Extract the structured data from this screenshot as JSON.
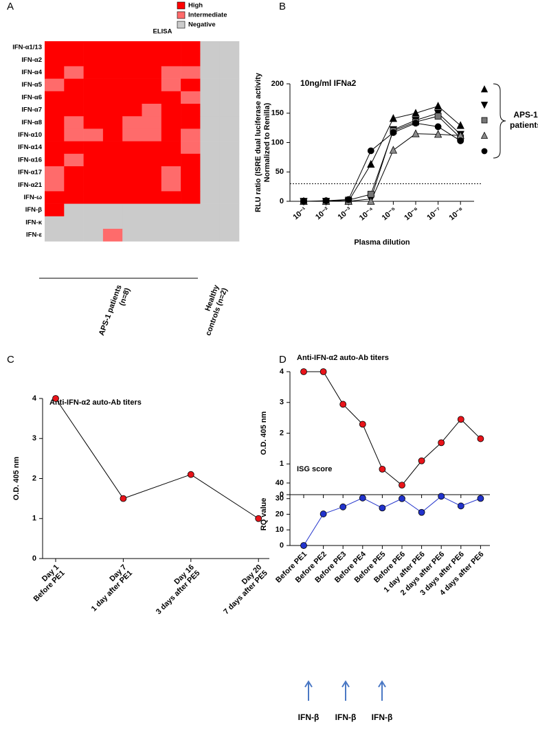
{
  "chart_data": [
    {
      "type": "heatmap",
      "panel": "A",
      "title": "ELISA",
      "rows": [
        "IFN-α1/13",
        "IFN-α2",
        "IFN-α4",
        "IFN-α5",
        "IFN-α6",
        "IFN-α7",
        "IFN-α8",
        "IFN-α10",
        "IFN-α14",
        "IFN-α16",
        "IFN-α17",
        "IFN-α21",
        "IFN-ω",
        "IFN-β",
        "IFN-κ",
        "IFN-ε"
      ],
      "levels": [
        {
          "name": "High",
          "color": "#ff0000"
        },
        {
          "name": "Intermediate",
          "color": "#ff6b6b"
        },
        {
          "name": "Negative",
          "color": "#cbcbcb"
        }
      ],
      "groups": [
        {
          "label": [
            "APS-1 patients",
            "(n=8)"
          ],
          "columns": 8
        },
        {
          "label": [
            "Healthy",
            "controls (n=2)"
          ],
          "columns": 2
        }
      ],
      "cells": [
        [
          0,
          0,
          0,
          0,
          0,
          0,
          0,
          0,
          2,
          2
        ],
        [
          0,
          0,
          0,
          0,
          0,
          0,
          0,
          0,
          2,
          2
        ],
        [
          0,
          1,
          0,
          0,
          0,
          0,
          1,
          1,
          2,
          2
        ],
        [
          1,
          0,
          0,
          0,
          0,
          0,
          1,
          0,
          2,
          2
        ],
        [
          0,
          0,
          0,
          0,
          0,
          0,
          0,
          1,
          2,
          2
        ],
        [
          0,
          0,
          0,
          0,
          0,
          1,
          0,
          0,
          2,
          2
        ],
        [
          0,
          1,
          0,
          0,
          1,
          1,
          0,
          0,
          2,
          2
        ],
        [
          0,
          1,
          1,
          0,
          1,
          1,
          0,
          1,
          2,
          2
        ],
        [
          0,
          0,
          0,
          0,
          0,
          0,
          0,
          1,
          2,
          2
        ],
        [
          0,
          1,
          0,
          0,
          0,
          0,
          0,
          0,
          2,
          2
        ],
        [
          1,
          0,
          0,
          0,
          0,
          0,
          1,
          0,
          2,
          2
        ],
        [
          1,
          0,
          0,
          0,
          0,
          0,
          1,
          0,
          2,
          2
        ],
        [
          0,
          0,
          0,
          0,
          0,
          0,
          0,
          0,
          2,
          2
        ],
        [
          0,
          2,
          2,
          2,
          2,
          2,
          2,
          2,
          2,
          2
        ],
        [
          2,
          2,
          2,
          2,
          2,
          2,
          2,
          2,
          2,
          2
        ],
        [
          2,
          2,
          2,
          1,
          2,
          2,
          2,
          2,
          2,
          2
        ]
      ]
    },
    {
      "type": "line",
      "panel": "B",
      "annotation": "10ng/ml IFNa2",
      "ylabel": [
        "RLU ratio (ISRE dual luciferase activity",
        "Normalized to Renilla)"
      ],
      "xlabel": "Plasma dilution",
      "categories": [
        "10⁻¹",
        "10⁻²",
        "10⁻³",
        "10⁻⁴",
        "10⁻⁵",
        "10⁻⁶",
        "10⁻⁷",
        "10⁻⁸"
      ],
      "ylim": [
        0,
        200
      ],
      "yticks": [
        0,
        50,
        100,
        150,
        200
      ],
      "threshold": 30,
      "legend_label": [
        "APS-1",
        "patients"
      ],
      "series": [
        {
          "marker": "triangle-up",
          "color": "#000000",
          "values": [
            0,
            0,
            0,
            63,
            141,
            150,
            162,
            129
          ]
        },
        {
          "marker": "triangle-down",
          "color": "#000000",
          "values": [
            0,
            0,
            0,
            4,
            122,
            138,
            150,
            114
          ]
        },
        {
          "marker": "square",
          "color": "#777777",
          "values": [
            0,
            0,
            2,
            12,
            120,
            135,
            145,
            108
          ]
        },
        {
          "marker": "triangle-up",
          "color": "#8a8a8a",
          "values": [
            0,
            0,
            0,
            0,
            87,
            115,
            114,
            112
          ]
        },
        {
          "marker": "circle",
          "color": "#000000",
          "values": [
            0,
            1,
            3,
            86,
            117,
            133,
            127,
            103
          ]
        }
      ]
    },
    {
      "type": "line",
      "panel": "C",
      "title": "Anti-IFN-α2 auto-Ab titers",
      "ylabel": "O.D. 405 nm",
      "categories": [
        [
          "Day 1",
          "Before PE1"
        ],
        [
          "Day 7",
          "1 day after PE1"
        ],
        [
          "Day 16",
          "3 days after PE5"
        ],
        [
          "Day 20",
          "7 days after PE5"
        ]
      ],
      "ylim": [
        0,
        4
      ],
      "yticks": [
        0,
        1,
        2,
        3,
        4
      ],
      "marker": "circle",
      "color": "#e8141a",
      "line_color": "#000000",
      "values": [
        4.0,
        1.5,
        2.1,
        1.0
      ]
    },
    {
      "type": "line",
      "panel": "D",
      "title": "Anti-IFN-α2 auto-Ab titers",
      "ylabel": "O.D. 405 nm",
      "ylim": [
        0,
        4
      ],
      "yticks": [
        0,
        1,
        2,
        3,
        4
      ],
      "marker": "circle",
      "color": "#e8141a",
      "line_color": "#000000",
      "values": [
        4.0,
        4.0,
        2.94,
        2.29,
        0.83,
        0.31,
        1.1,
        1.69,
        2.45,
        1.82
      ]
    },
    {
      "type": "line",
      "title": "ISG score",
      "ylabel": "RQ value",
      "categories": [
        "Before PE1",
        "Before PE2",
        "Before PE3",
        "Before PE4",
        "Before PE5",
        "Before PE6",
        "1 day after PE6",
        "2 days after PE6",
        "3 days after PE6",
        "4 days after PE6"
      ],
      "ylim": [
        0,
        40
      ],
      "yticks": [
        0,
        10,
        20,
        30,
        40
      ],
      "marker": "circle",
      "color": "#2233cc",
      "line_color": "#2233cc",
      "values": [
        0,
        20.2,
        24.7,
        30.4,
        24.0,
        30.0,
        21.2,
        31.5,
        25.3,
        30.1
      ],
      "annotations": [
        "IFN-β",
        "IFN-β",
        "IFN-β"
      ]
    }
  ]
}
